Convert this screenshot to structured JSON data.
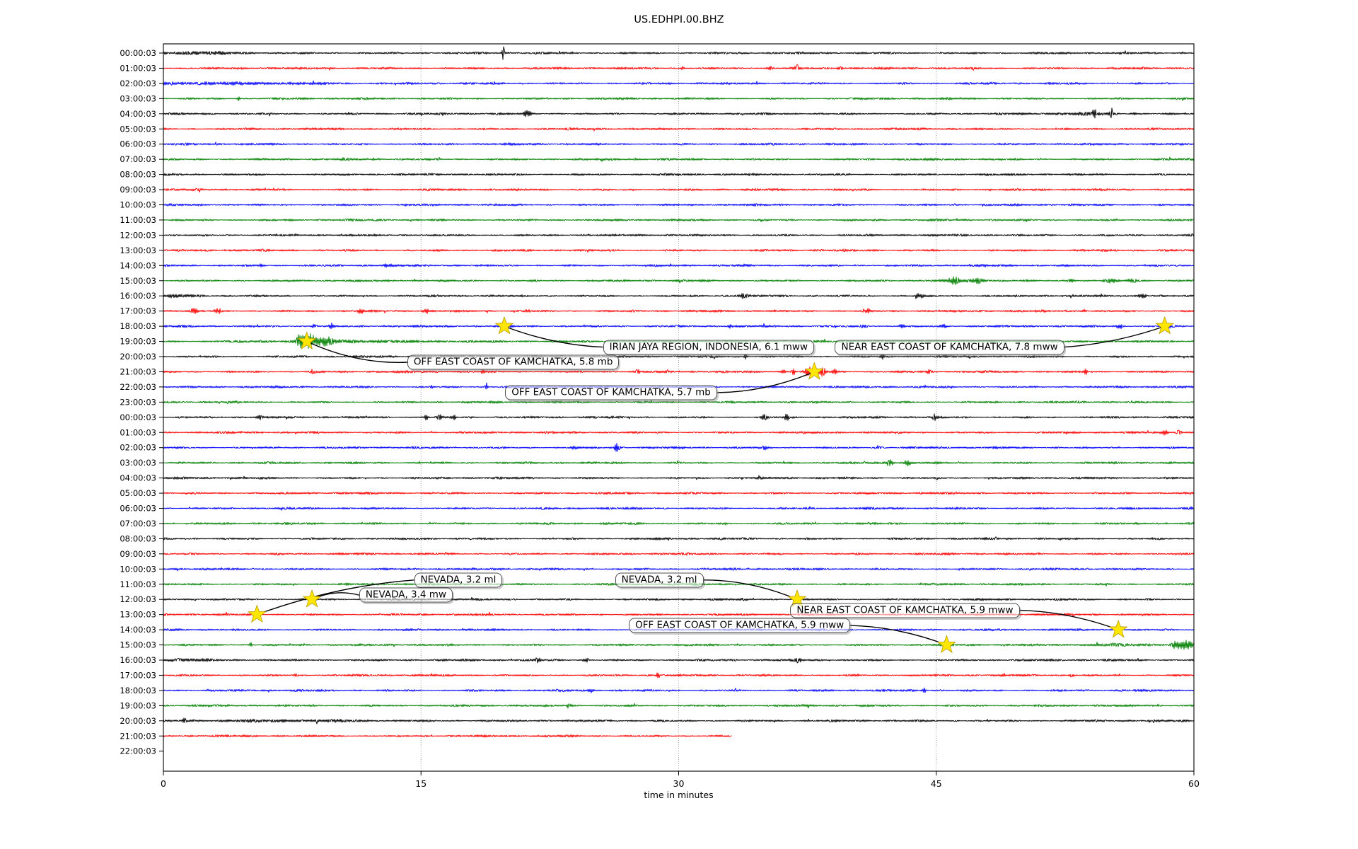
{
  "chart_data": {
    "type": "line",
    "subtype": "helicorder-dayplot",
    "title": "US.EDHPI.00.BHZ",
    "xlabel": "time in minutes",
    "x_ticks": [
      0,
      15,
      30,
      45,
      60
    ],
    "x_range_minutes": [
      0,
      60
    ],
    "grid_minutes": [
      15,
      30,
      45
    ],
    "color_cycle": [
      "#000000",
      "#ff0000",
      "#0000ff",
      "#008000"
    ],
    "star_color": "#ffe600",
    "rows": [
      {
        "label": "00:00:03",
        "color": "#000000"
      },
      {
        "label": "01:00:03",
        "color": "#ff0000"
      },
      {
        "label": "02:00:03",
        "color": "#0000ff"
      },
      {
        "label": "03:00:03",
        "color": "#008000"
      },
      {
        "label": "04:00:03",
        "color": "#000000"
      },
      {
        "label": "05:00:03",
        "color": "#ff0000"
      },
      {
        "label": "06:00:03",
        "color": "#0000ff"
      },
      {
        "label": "07:00:03",
        "color": "#008000"
      },
      {
        "label": "08:00:03",
        "color": "#000000"
      },
      {
        "label": "09:00:03",
        "color": "#ff0000"
      },
      {
        "label": "10:00:03",
        "color": "#0000ff"
      },
      {
        "label": "11:00:03",
        "color": "#008000"
      },
      {
        "label": "12:00:03",
        "color": "#000000"
      },
      {
        "label": "13:00:03",
        "color": "#ff0000"
      },
      {
        "label": "14:00:03",
        "color": "#0000ff"
      },
      {
        "label": "15:00:03",
        "color": "#008000"
      },
      {
        "label": "16:00:03",
        "color": "#000000"
      },
      {
        "label": "17:00:03",
        "color": "#ff0000"
      },
      {
        "label": "18:00:03",
        "color": "#0000ff"
      },
      {
        "label": "19:00:03",
        "color": "#008000"
      },
      {
        "label": "20:00:03",
        "color": "#000000"
      },
      {
        "label": "21:00:03",
        "color": "#ff0000"
      },
      {
        "label": "22:00:03",
        "color": "#0000ff"
      },
      {
        "label": "23:00:03",
        "color": "#008000"
      },
      {
        "label": "00:00:03",
        "color": "#000000"
      },
      {
        "label": "01:00:03",
        "color": "#ff0000"
      },
      {
        "label": "02:00:03",
        "color": "#0000ff"
      },
      {
        "label": "03:00:03",
        "color": "#008000"
      },
      {
        "label": "04:00:03",
        "color": "#000000"
      },
      {
        "label": "05:00:03",
        "color": "#ff0000"
      },
      {
        "label": "06:00:03",
        "color": "#0000ff"
      },
      {
        "label": "07:00:03",
        "color": "#008000"
      },
      {
        "label": "08:00:03",
        "color": "#000000"
      },
      {
        "label": "09:00:03",
        "color": "#ff0000"
      },
      {
        "label": "10:00:03",
        "color": "#0000ff"
      },
      {
        "label": "11:00:03",
        "color": "#008000"
      },
      {
        "label": "12:00:03",
        "color": "#000000"
      },
      {
        "label": "13:00:03",
        "color": "#ff0000"
      },
      {
        "label": "14:00:03",
        "color": "#0000ff"
      },
      {
        "label": "15:00:03",
        "color": "#008000"
      },
      {
        "label": "16:00:03",
        "color": "#000000"
      },
      {
        "label": "17:00:03",
        "color": "#ff0000"
      },
      {
        "label": "18:00:03",
        "color": "#0000ff"
      },
      {
        "label": "19:00:03",
        "color": "#008000"
      },
      {
        "label": "20:00:03",
        "color": "#000000"
      },
      {
        "label": "21:00:03",
        "color": "#ff0000",
        "end_min": 33.1
      },
      {
        "label": "22:00:03",
        "color": null,
        "empty": true
      }
    ],
    "events": [
      {
        "label": "OFF EAST COAST OF KAMCHATKA, 5.8 mb",
        "star_row": 19,
        "star_min": 8.35,
        "box_row": 20,
        "box_left_min": 14.2,
        "box_dy": 8,
        "anchor": "left",
        "bow": 18
      },
      {
        "label": "IRIAN JAYA REGION, INDONESIA, 6.1 mww",
        "star_row": 18,
        "star_min": 19.85,
        "box_row": 19,
        "box_left_min": 25.6,
        "box_dy": 8,
        "anchor": "left",
        "bow": 12
      },
      {
        "label": "NEAR EAST COAST OF KAMCHATKA, 7.8 mww",
        "star_row": 18,
        "star_min": 58.3,
        "box_row": 19,
        "box_left_min": 39.1,
        "box_dy": 8,
        "anchor": "right",
        "bow": 10
      },
      {
        "label": "OFF EAST COAST OF KAMCHATKA, 5.7 mb",
        "star_row": 21,
        "star_min": 37.9,
        "box_row": 22,
        "box_left_min": 19.9,
        "box_dy": 8,
        "anchor": "right",
        "bow": 14
      },
      {
        "label": "NEVADA, 3.2 ml",
        "star_row": 37,
        "star_min": 5.45,
        "box_row": 35,
        "box_left_min": 14.6,
        "box_dy": -6,
        "anchor": "left",
        "bow": -16
      },
      {
        "label": "NEVADA, 3.4 mw",
        "star_row": 36,
        "star_min": 8.65,
        "box_row": 36,
        "box_left_min": 11.4,
        "box_dy": -6,
        "anchor": "left",
        "bow": -12
      },
      {
        "label": "NEVADA, 3.2 ml",
        "star_row": 36,
        "star_min": 36.9,
        "box_row": 35,
        "box_left_min": 26.3,
        "box_dy": -6,
        "anchor": "right",
        "bow": -14
      },
      {
        "label": "NEAR EAST COAST OF KAMCHATKA, 5.9 mww",
        "star_row": 38,
        "star_min": 55.6,
        "box_row": 37,
        "box_left_min": 36.5,
        "box_dy": -6,
        "anchor": "right",
        "bow": -12
      },
      {
        "label": "OFF EAST COAST OF KAMCHATKA, 5.9 mww",
        "star_row": 39,
        "star_min": 45.6,
        "box_row": 38,
        "box_left_min": 27.1,
        "box_dy": -6,
        "anchor": "right",
        "bow": -12
      }
    ],
    "bursts": [
      [
        0,
        1.5,
        1.3,
        2.0,
        "gauss"
      ],
      [
        0,
        19.8,
        12,
        0.05,
        "spike"
      ],
      [
        1,
        30.2,
        2,
        0.08,
        "gauss"
      ],
      [
        1,
        35.3,
        2.5,
        0.12,
        "gauss"
      ],
      [
        1,
        36.9,
        3.5,
        0.1,
        "gauss"
      ],
      [
        1,
        39.4,
        2.5,
        0.1,
        "gauss"
      ],
      [
        2,
        3,
        1.2,
        3,
        "gauss"
      ],
      [
        2,
        8,
        0.8,
        1.5,
        "gauss"
      ],
      [
        3,
        4.4,
        4,
        0.06,
        "spike"
      ],
      [
        4,
        21.2,
        3.5,
        0.15,
        "gauss"
      ],
      [
        4,
        53.5,
        1.5,
        1.2,
        "gauss"
      ],
      [
        4,
        54.2,
        8,
        0.06,
        "spike"
      ],
      [
        4,
        55.2,
        6.5,
        0.06,
        "spike"
      ],
      [
        4,
        56.5,
        2.5,
        0.1,
        "gauss"
      ],
      [
        14,
        5.7,
        1.8,
        0.15,
        "gauss"
      ],
      [
        14,
        13,
        1.8,
        0.2,
        "gauss"
      ],
      [
        15,
        46.1,
        5.5,
        0.25,
        "gauss"
      ],
      [
        15,
        47.4,
        3.5,
        0.3,
        "gauss"
      ],
      [
        15,
        52.8,
        2.2,
        0.2,
        "gauss"
      ],
      [
        15,
        55.1,
        2.8,
        0.25,
        "gauss"
      ],
      [
        15,
        56.4,
        2.8,
        0.2,
        "gauss"
      ],
      [
        16,
        0.5,
        1,
        1,
        "gauss"
      ],
      [
        16,
        33.7,
        3,
        0.2,
        "gauss"
      ],
      [
        16,
        44,
        3.5,
        0.15,
        "gauss"
      ],
      [
        16,
        57,
        3,
        0.2,
        "gauss"
      ],
      [
        17,
        1.8,
        3,
        0.15,
        "gauss"
      ],
      [
        17,
        3.2,
        3,
        0.12,
        "gauss"
      ],
      [
        17,
        11.5,
        3.2,
        0.12,
        "gauss"
      ],
      [
        17,
        15.3,
        2.8,
        0.12,
        "gauss"
      ],
      [
        17,
        21.2,
        2,
        0.1,
        "gauss"
      ],
      [
        17,
        41,
        2.5,
        0.12,
        "gauss"
      ],
      [
        17,
        53.6,
        2.2,
        0.1,
        "gauss"
      ],
      [
        18,
        8.8,
        2.8,
        0.12,
        "gauss"
      ],
      [
        18,
        9.8,
        4,
        0.1,
        "gauss"
      ],
      [
        18,
        33,
        2.2,
        0.1,
        "gauss"
      ],
      [
        18,
        40.8,
        3.5,
        0.15,
        "gauss"
      ],
      [
        18,
        43,
        2.8,
        0.12,
        "gauss"
      ],
      [
        18,
        45.4,
        2.4,
        0.1,
        "gauss"
      ],
      [
        18,
        55.7,
        3.5,
        0.12,
        "gauss"
      ],
      [
        18,
        58.6,
        2,
        0.1,
        "gauss"
      ],
      [
        19,
        7.9,
        11,
        0.9,
        "decay"
      ],
      [
        19,
        8.6,
        4,
        0.15,
        "gauss"
      ],
      [
        19,
        9.5,
        3,
        0.2,
        "gauss"
      ],
      [
        19,
        12,
        1.2,
        4,
        "gauss"
      ],
      [
        20,
        33.9,
        4.5,
        0.06,
        "spike"
      ],
      [
        20,
        41.9,
        5,
        0.06,
        "spike"
      ],
      [
        21,
        8.7,
        3.5,
        0.07,
        "spike"
      ],
      [
        21,
        18.6,
        2.5,
        0.08,
        "gauss"
      ],
      [
        21,
        27.6,
        2.5,
        0.08,
        "gauss"
      ],
      [
        21,
        36.1,
        3.5,
        0.08,
        "gauss"
      ],
      [
        21,
        36.7,
        4.5,
        0.08,
        "gauss"
      ],
      [
        21,
        37.5,
        9,
        0.5,
        "decay"
      ],
      [
        21,
        38.4,
        4.5,
        0.1,
        "gauss"
      ],
      [
        21,
        39.1,
        3,
        0.1,
        "gauss"
      ],
      [
        21,
        44.6,
        2.5,
        0.1,
        "gauss"
      ],
      [
        21,
        53.7,
        3.5,
        0.08,
        "gauss"
      ],
      [
        22,
        15.6,
        2.2,
        0.08,
        "gauss"
      ],
      [
        22,
        18.8,
        6,
        0.05,
        "spike"
      ],
      [
        24,
        5.6,
        2.8,
        0.1,
        "gauss"
      ],
      [
        24,
        15.3,
        3.5,
        0.1,
        "gauss"
      ],
      [
        24,
        16.1,
        3.8,
        0.1,
        "gauss"
      ],
      [
        24,
        16.9,
        3,
        0.1,
        "gauss"
      ],
      [
        24,
        35,
        3.5,
        0.12,
        "gauss"
      ],
      [
        24,
        36.3,
        4,
        0.1,
        "gauss"
      ],
      [
        24,
        44.9,
        3.5,
        0.08,
        "gauss"
      ],
      [
        25,
        58.3,
        4,
        0.1,
        "gauss"
      ],
      [
        25,
        59.1,
        4,
        0.1,
        "gauss"
      ],
      [
        26,
        23.9,
        3,
        0.12,
        "gauss"
      ],
      [
        26,
        26.4,
        5.5,
        0.1,
        "gauss"
      ],
      [
        26,
        35,
        2.2,
        0.1,
        "gauss"
      ],
      [
        26,
        41.6,
        2.8,
        0.1,
        "gauss"
      ],
      [
        27,
        42.3,
        4.5,
        0.15,
        "gauss"
      ],
      [
        27,
        43.3,
        3.5,
        0.15,
        "gauss"
      ],
      [
        39,
        5.1,
        5,
        0.05,
        "spike"
      ],
      [
        39,
        56,
        1.2,
        2,
        "gauss"
      ],
      [
        39,
        58.9,
        6.5,
        0.45,
        "decay"
      ],
      [
        39,
        59.6,
        5,
        0.2,
        "gauss"
      ],
      [
        40,
        1,
        1.2,
        1.2,
        "gauss"
      ],
      [
        40,
        21.8,
        2.6,
        0.12,
        "gauss"
      ],
      [
        40,
        24.6,
        3,
        0.12,
        "gauss"
      ],
      [
        40,
        37,
        3,
        0.12,
        "gauss"
      ],
      [
        41,
        7.7,
        3,
        0.1,
        "gauss"
      ],
      [
        41,
        28.8,
        4.5,
        0.06,
        "spike"
      ],
      [
        41,
        52.9,
        2.5,
        0.1,
        "gauss"
      ],
      [
        42,
        24.9,
        2.2,
        0.1,
        "gauss"
      ],
      [
        42,
        44.3,
        3.2,
        0.07,
        "spike"
      ],
      [
        43,
        23.6,
        2.8,
        0.1,
        "gauss"
      ],
      [
        44,
        1.2,
        7,
        0.05,
        "spike"
      ],
      [
        44,
        8,
        0.9,
        4,
        "gauss"
      ]
    ]
  }
}
